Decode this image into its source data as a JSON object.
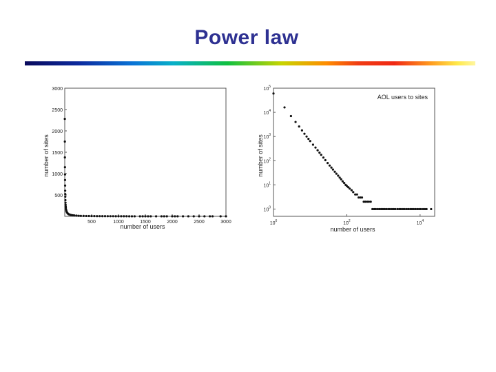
{
  "slide": {
    "title": "Power law"
  },
  "chart_data": [
    {
      "type": "scatter",
      "title": "",
      "xlabel": "number of users",
      "ylabel": "number of sites",
      "xlim": [
        0,
        3000
      ],
      "ylim": [
        0,
        3000
      ],
      "x_ticks": [
        500,
        1000,
        1500,
        2000,
        2500,
        3000
      ],
      "y_ticks": [
        500,
        1000,
        1500,
        2000,
        2500,
        3000
      ],
      "x_tick_labels": [
        "500",
        "1000",
        "1500",
        "2000",
        "2500",
        "3000"
      ],
      "y_tick_labels": [
        "500",
        "1000",
        "1500",
        "2000",
        "2500",
        "3000"
      ],
      "grid": false,
      "series": [
        {
          "x": [
            1,
            2,
            3,
            4,
            5,
            6,
            7,
            8,
            9,
            10,
            12,
            14,
            16,
            18,
            20,
            25,
            30,
            35,
            40,
            50,
            60,
            70,
            80,
            100,
            120,
            150,
            180,
            220,
            260,
            300,
            350,
            400,
            450,
            500,
            550,
            600,
            650,
            700,
            750,
            800,
            850,
            900,
            950,
            1000,
            1050,
            1100,
            1150,
            1200,
            1250,
            1300,
            1400,
            1450,
            1500,
            1550,
            1600,
            1700,
            1800,
            1850,
            1900,
            2000,
            2050,
            2100,
            2200,
            2300,
            2400,
            2500,
            2600,
            2700,
            2750,
            2900,
            3000
          ],
          "y": [
            2280,
            1750,
            1380,
            1150,
            980,
            850,
            720,
            600,
            520,
            460,
            380,
            320,
            270,
            230,
            200,
            160,
            130,
            110,
            95,
            75,
            62,
            52,
            45,
            36,
            30,
            24,
            20,
            16,
            13,
            11,
            10,
            9,
            8,
            7,
            6,
            5,
            5,
            4,
            4,
            3,
            3,
            3,
            2,
            2,
            2,
            2,
            2,
            1,
            1,
            1,
            1,
            1,
            1,
            1,
            1,
            1,
            1,
            1,
            1,
            1,
            1,
            1,
            1,
            1,
            1,
            1,
            1,
            1,
            1,
            1,
            1
          ]
        }
      ]
    },
    {
      "type": "scatter",
      "title": "AOL users to sites",
      "xlabel": "number of users",
      "ylabel": "number of sites",
      "x_scale": "log",
      "y_scale": "log",
      "xlim": [
        1,
        25000
      ],
      "ylim": [
        0.5,
        100000
      ],
      "x_ticks": [
        1,
        100,
        10000
      ],
      "y_ticks": [
        1,
        10,
        100,
        1000,
        10000,
        100000
      ],
      "x_tick_labels": [
        {
          "base": "10",
          "exp": "0"
        },
        {
          "base": "10",
          "exp": "2"
        },
        {
          "base": "10",
          "exp": "4"
        }
      ],
      "y_tick_labels": [
        {
          "base": "10",
          "exp": "0"
        },
        {
          "base": "10",
          "exp": "1"
        },
        {
          "base": "10",
          "exp": "2"
        },
        {
          "base": "10",
          "exp": "3"
        },
        {
          "base": "10",
          "exp": "4"
        },
        {
          "base": "10",
          "exp": "5"
        }
      ],
      "legend": "top-right",
      "grid": false,
      "series": [
        {
          "x": [
            1,
            2,
            3,
            4,
            5,
            6,
            7,
            8,
            9,
            10,
            12,
            14,
            16,
            18,
            20,
            23,
            26,
            30,
            34,
            38,
            42,
            47,
            52,
            58,
            64,
            70,
            77,
            85,
            93,
            100,
            110,
            120,
            135,
            150,
            170,
            190,
            210,
            235,
            260,
            290,
            320,
            360,
            400,
            450,
            500,
            560,
            620,
            700,
            780,
            870,
            970,
            1080,
            1200,
            1350,
            1500,
            1700,
            1900,
            2100,
            2400,
            2700,
            3000,
            3400,
            3800,
            4300,
            4800,
            5400,
            6000,
            6700,
            7500,
            8400,
            9400,
            10500,
            12000,
            13500,
            15000,
            20000
          ],
          "y": [
            60000,
            16000,
            7000,
            4000,
            2600,
            1800,
            1300,
            1000,
            800,
            650,
            460,
            350,
            270,
            215,
            175,
            135,
            105,
            80,
            63,
            52,
            43,
            35,
            29,
            24,
            20,
            17,
            14,
            12,
            10,
            9,
            8,
            7,
            6,
            5,
            4,
            4,
            3,
            3,
            3,
            2,
            2,
            2,
            2,
            2,
            1,
            1,
            1,
            1,
            1,
            1,
            1,
            1,
            1,
            1,
            1,
            1,
            1,
            1,
            1,
            1,
            1,
            1,
            1,
            1,
            1,
            1,
            1,
            1,
            1,
            1,
            1,
            1,
            1,
            1,
            1,
            1
          ]
        }
      ]
    }
  ]
}
